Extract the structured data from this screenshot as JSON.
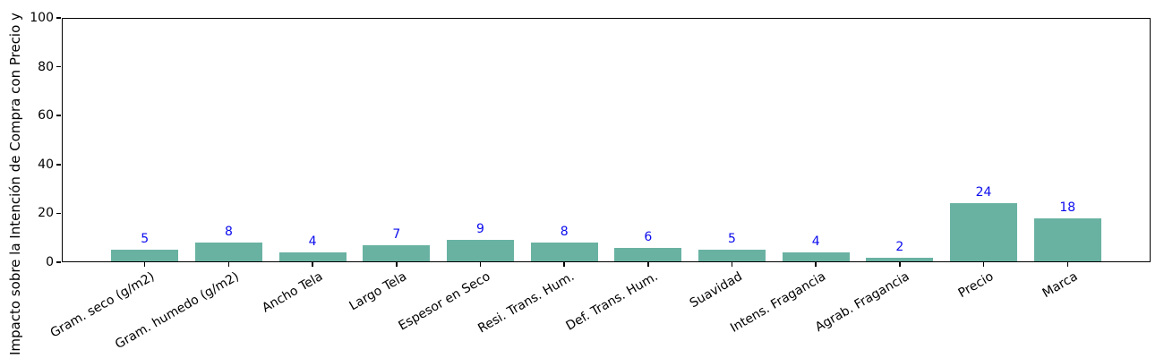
{
  "chart_data": {
    "type": "bar",
    "categories": [
      "Gram. seco (g/m2)",
      "Gram. humedo (g/m2)",
      "Ancho Tela",
      "Largo Tela",
      "Espesor en Seco",
      "Resi. Trans. Hum.",
      "Def. Trans. Hum.",
      "Suavidad",
      "Intens. Fragancia",
      "Agrab. Fragancia",
      "Precio",
      "Marca"
    ],
    "values": [
      5,
      8,
      4,
      7,
      9,
      8,
      6,
      5,
      4,
      2,
      24,
      18
    ],
    "value_labels": [
      "5",
      "8",
      "4",
      "7",
      "9",
      "8",
      "6",
      "5",
      "4",
      "2",
      "24",
      "18"
    ],
    "title": "",
    "xlabel": "",
    "ylabel": "Impacto sobre la Intención de Compra con Precio y",
    "ylim": [
      0,
      100
    ],
    "yticks": [
      0,
      20,
      40,
      60,
      80,
      100
    ],
    "grid": false,
    "legend": null,
    "bar_color": "#69b2a2",
    "value_label_color": "#0b0bee",
    "axis_color": "#000000"
  }
}
